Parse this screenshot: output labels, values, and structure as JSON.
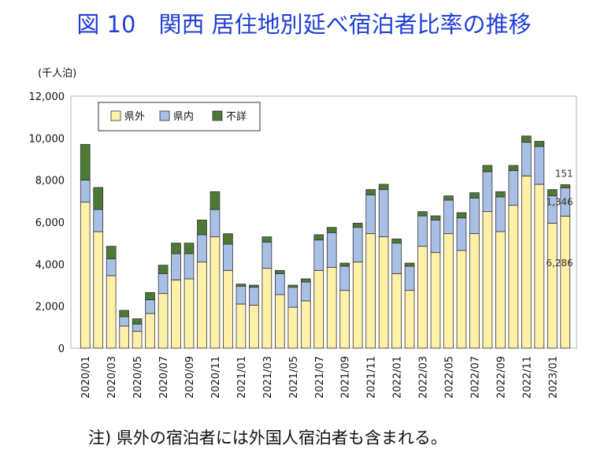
{
  "title": "図 10　関西 居住地別延べ宿泊者比率の推移",
  "footnote": "注) 県外の宿泊者には外国人宿泊者も含まれる。",
  "chart_data": {
    "type": "bar",
    "stacked": true,
    "unit_label": "(千人泊)",
    "ylim": [
      0,
      12000
    ],
    "yticks": [
      "0",
      "2,000",
      "4,000",
      "6,000",
      "8,000",
      "10,000",
      "12,000"
    ],
    "categories": [
      "2020/01",
      "2020/02",
      "2020/03",
      "2020/04",
      "2020/05",
      "2020/06",
      "2020/07",
      "2020/08",
      "2020/09",
      "2020/10",
      "2020/11",
      "2020/12",
      "2021/01",
      "2021/02",
      "2021/03",
      "2021/04",
      "2021/05",
      "2021/06",
      "2021/07",
      "2021/08",
      "2021/09",
      "2021/10",
      "2021/11",
      "2021/12",
      "2022/01",
      "2022/02",
      "2022/03",
      "2022/04",
      "2022/05",
      "2022/06",
      "2022/07",
      "2022/08",
      "2022/09",
      "2022/10",
      "2022/11",
      "2022/12",
      "2023/01",
      "2023/02"
    ],
    "xtick_labels": [
      "2020/01",
      "2020/03",
      "2020/05",
      "2020/07",
      "2020/09",
      "2020/11",
      "2021/01",
      "2021/03",
      "2021/05",
      "2021/07",
      "2021/09",
      "2021/11",
      "2022/01",
      "2022/03",
      "2022/05",
      "2022/07",
      "2022/09",
      "2022/11",
      "2023/01"
    ],
    "series": [
      {
        "name": "県外",
        "color": "#fff0a8",
        "values": [
          6950,
          5550,
          3450,
          1050,
          800,
          1650,
          2600,
          3250,
          3300,
          4100,
          5300,
          3700,
          2100,
          2050,
          3800,
          2550,
          1950,
          2250,
          3700,
          3850,
          2750,
          4100,
          5450,
          5300,
          3550,
          2750,
          4850,
          4550,
          5450,
          4650,
          5450,
          6500,
          5550,
          6800,
          8200,
          7800,
          5950,
          6286
        ]
      },
      {
        "name": "県内",
        "color": "#a8bfe6",
        "values": [
          1050,
          1050,
          800,
          450,
          350,
          650,
          950,
          1250,
          1200,
          1300,
          1300,
          1250,
          850,
          850,
          1250,
          1000,
          950,
          900,
          1450,
          1650,
          1150,
          1650,
          1850,
          2250,
          1450,
          1150,
          1450,
          1550,
          1600,
          1550,
          1700,
          1900,
          1650,
          1650,
          1600,
          1800,
          1300,
          1346
        ]
      },
      {
        "name": "不詳",
        "color": "#4c7a36",
        "values": [
          1700,
          1050,
          600,
          300,
          250,
          350,
          400,
          500,
          500,
          700,
          850,
          500,
          100,
          100,
          250,
          150,
          100,
          150,
          250,
          250,
          150,
          200,
          250,
          250,
          200,
          150,
          200,
          200,
          200,
          250,
          250,
          300,
          250,
          250,
          300,
          250,
          300,
          151
        ]
      }
    ],
    "data_labels": [
      "151",
      "1,346",
      "6,286"
    ],
    "legend_position": "top-left",
    "grid": false
  }
}
